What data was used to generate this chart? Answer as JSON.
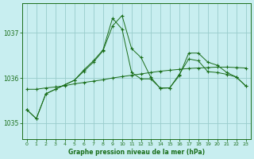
{
  "title": "Graphe pression niveau de la mer (hPa)",
  "background_color": "#c8eef0",
  "grid_color": "#99cccc",
  "line_color": "#1a6e1a",
  "xlim": [
    -0.5,
    23.5
  ],
  "ylim": [
    1034.65,
    1037.65
  ],
  "yticks": [
    1035,
    1036,
    1037
  ],
  "xticks": [
    0,
    1,
    2,
    3,
    4,
    5,
    6,
    7,
    8,
    9,
    10,
    11,
    12,
    13,
    14,
    15,
    16,
    17,
    18,
    19,
    20,
    21,
    22,
    23
  ],
  "series_flat": [
    1035.75,
    1035.75,
    1035.78,
    1035.8,
    1035.83,
    1035.87,
    1035.9,
    1035.93,
    1035.96,
    1036.0,
    1036.03,
    1036.06,
    1036.09,
    1036.12,
    1036.15,
    1036.17,
    1036.19,
    1036.21,
    1036.22,
    1036.23,
    1036.24,
    1036.24,
    1036.23,
    1036.22
  ],
  "series_peak1": [
    1035.3,
    1035.1,
    1035.65,
    1035.75,
    1035.85,
    1035.95,
    1036.15,
    1036.35,
    1036.6,
    1037.15,
    1037.38,
    1036.65,
    1036.45,
    1036.02,
    1035.77,
    1035.78,
    1036.05,
    1036.55,
    1036.55,
    1036.35,
    1036.28,
    1036.12,
    1036.02,
    1035.82
  ],
  "series_peak2": [
    1035.3,
    1035.1,
    1035.65,
    1035.75,
    1035.85,
    1035.95,
    1036.18,
    1036.38,
    1036.62,
    1037.32,
    1037.08,
    1036.12,
    1035.98,
    1035.98,
    1035.78,
    1035.78,
    1036.08,
    1036.42,
    1036.38,
    1036.14,
    1036.12,
    1036.08,
    1036.02,
    1035.82
  ]
}
